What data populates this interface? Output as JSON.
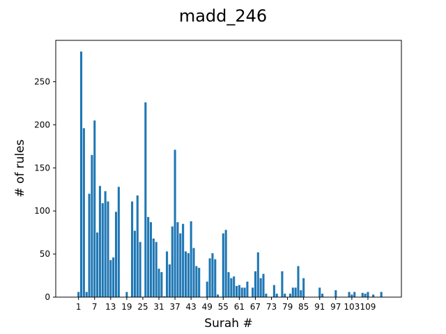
{
  "chart_data": {
    "type": "bar",
    "title": "madd_246",
    "xlabel": "Surah #",
    "ylabel": "# of rules",
    "xlim": [
      -7.5,
      121.5
    ],
    "ylim": [
      0,
      298
    ],
    "xticks": [
      1,
      7,
      13,
      19,
      25,
      31,
      37,
      43,
      49,
      55,
      61,
      67,
      73,
      79,
      85,
      91,
      97,
      103,
      109
    ],
    "yticks": [
      0,
      50,
      100,
      150,
      200,
      250
    ],
    "bar_color": "#1f77b4",
    "x": [
      1,
      2,
      3,
      4,
      5,
      6,
      7,
      8,
      9,
      10,
      11,
      12,
      13,
      14,
      15,
      16,
      17,
      18,
      19,
      20,
      21,
      22,
      23,
      24,
      25,
      26,
      27,
      28,
      29,
      30,
      31,
      32,
      33,
      34,
      35,
      36,
      37,
      38,
      39,
      40,
      41,
      42,
      43,
      44,
      45,
      46,
      47,
      48,
      49,
      50,
      51,
      52,
      53,
      54,
      55,
      56,
      57,
      58,
      59,
      60,
      61,
      62,
      63,
      64,
      65,
      66,
      67,
      68,
      69,
      70,
      71,
      72,
      73,
      74,
      75,
      76,
      77,
      78,
      79,
      80,
      81,
      82,
      83,
      84,
      85,
      86,
      87,
      88,
      89,
      90,
      91,
      92,
      93,
      94,
      95,
      96,
      97,
      98,
      99,
      100,
      101,
      102,
      103,
      104,
      105,
      106,
      107,
      108,
      109,
      110,
      111,
      112,
      113,
      114
    ],
    "values": [
      6,
      285,
      196,
      6,
      120,
      165,
      205,
      75,
      129,
      109,
      123,
      111,
      43,
      46,
      99,
      128,
      0,
      0,
      6,
      0,
      111,
      77,
      118,
      64,
      0,
      226,
      93,
      87,
      68,
      64,
      33,
      29,
      1,
      53,
      38,
      82,
      171,
      87,
      74,
      85,
      53,
      51,
      88,
      57,
      36,
      34,
      0,
      0,
      18,
      45,
      51,
      44,
      3,
      0,
      74,
      78,
      29,
      22,
      24,
      13,
      14,
      11,
      11,
      18,
      0,
      11,
      30,
      52,
      22,
      27,
      4,
      0,
      0,
      14,
      4,
      0,
      30,
      4,
      0,
      4,
      11,
      11,
      36,
      8,
      22,
      0,
      0,
      0,
      0,
      0,
      11,
      4,
      0,
      0,
      0,
      0,
      8,
      0,
      0,
      0,
      0,
      6,
      3,
      6,
      0,
      0,
      5,
      4,
      6,
      0,
      3,
      0,
      0,
      6
    ]
  }
}
